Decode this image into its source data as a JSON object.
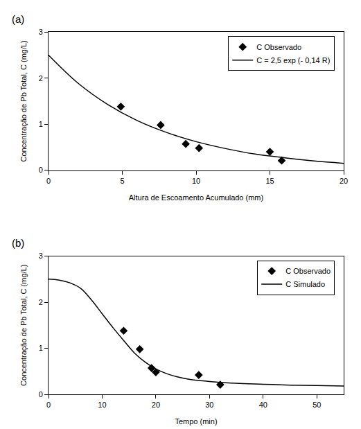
{
  "chart_data": [
    {
      "type": "scatter",
      "title": "(a)",
      "x_label": "Altura de Escoamento Acumulado (mm)",
      "y_label": "Concentração de Pb Total, C (mg/L)",
      "xlim": [
        0,
        20
      ],
      "xticks": [
        0,
        5,
        10,
        15,
        20
      ],
      "ylim": [
        0,
        3
      ],
      "yticks": [
        0,
        1,
        2,
        3
      ],
      "grid": false,
      "legend": "upper right",
      "series": [
        {
          "name": "C Observado",
          "type": "scatter",
          "marker": "diamond",
          "color": "#000000",
          "x": [
            4.9,
            7.6,
            9.3,
            10.2,
            15.0,
            15.8
          ],
          "values": [
            1.38,
            0.98,
            0.57,
            0.48,
            0.4,
            0.21
          ]
        },
        {
          "name": "C = 2,5 exp (- 0,14 R)",
          "type": "line",
          "line_style": "solid",
          "color": "#000000",
          "x": [
            0,
            2,
            4,
            6,
            8,
            10,
            12,
            14,
            16,
            18,
            20
          ],
          "values": [
            2.5,
            1.89,
            1.43,
            1.08,
            0.82,
            0.62,
            0.47,
            0.35,
            0.27,
            0.2,
            0.15
          ]
        }
      ]
    },
    {
      "type": "scatter",
      "title": "(b)",
      "x_label": "Tempo (min)",
      "y_label": "Concentração de Pb Total, C (mg/L)",
      "xlim": [
        0,
        55
      ],
      "xticks": [
        0,
        10,
        20,
        30,
        40,
        50
      ],
      "ylim": [
        0,
        3
      ],
      "yticks": [
        0,
        1,
        2,
        3
      ],
      "grid": false,
      "legend": "upper right",
      "series": [
        {
          "name": "C Observado",
          "type": "scatter",
          "marker": "diamond",
          "color": "#000000",
          "x": [
            14,
            17,
            19.2,
            20,
            28,
            32
          ],
          "values": [
            1.38,
            0.98,
            0.57,
            0.48,
            0.42,
            0.21
          ]
        },
        {
          "name": "C Simulado",
          "type": "line",
          "line_style": "solid",
          "color": "#000000",
          "x": [
            0,
            2,
            4,
            6,
            8,
            10,
            12,
            14,
            16,
            18,
            20,
            22,
            24,
            26,
            28,
            30,
            35,
            40,
            45,
            50,
            55
          ],
          "values": [
            2.5,
            2.48,
            2.42,
            2.3,
            2.05,
            1.75,
            1.45,
            1.17,
            0.9,
            0.7,
            0.55,
            0.45,
            0.38,
            0.33,
            0.3,
            0.28,
            0.24,
            0.22,
            0.2,
            0.19,
            0.18
          ]
        }
      ]
    }
  ]
}
